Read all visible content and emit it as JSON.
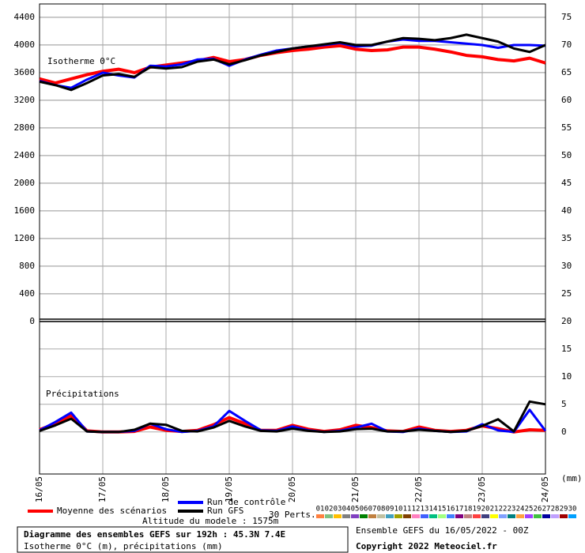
{
  "chart_data": {
    "type": "line",
    "title": "Diagramme des ensembles GEFS sur 192h : 45.3N 7.4E",
    "subtitle": "Isotherme 0°C (m), précipitations (mm)",
    "run_info": "Ensemble GEFS du 16/05/2022 - 00Z",
    "copyright": "Copyright 2022 Meteociel.fr",
    "annotations": {
      "isotherm": "Isotherme 0°C",
      "precip": "Précipitations",
      "unit": "(mm)",
      "altitude": "Altitude du modele : 1575m",
      "perts": "30 Perts."
    },
    "x": [
      0,
      6,
      12,
      18,
      24,
      30,
      36,
      42,
      48,
      54,
      60,
      66,
      72,
      78,
      84,
      90,
      96,
      102,
      108,
      114,
      120,
      126,
      132,
      138,
      144,
      150,
      156,
      162,
      168,
      174,
      180,
      186,
      192
    ],
    "xlim": [
      0,
      192
    ],
    "xticks": [
      {
        "value": 0,
        "label": "16/05"
      },
      {
        "value": 24,
        "label": "17/05"
      },
      {
        "value": 48,
        "label": "18/05"
      },
      {
        "value": 72,
        "label": "19/05"
      },
      {
        "value": 96,
        "label": "20/05"
      },
      {
        "value": 120,
        "label": "21/05"
      },
      {
        "value": 144,
        "label": "22/05"
      },
      {
        "value": 168,
        "label": "23/05"
      },
      {
        "value": 192,
        "label": "24/05"
      }
    ],
    "ylim": [
      0,
      4594
    ],
    "yticks": [
      0,
      400,
      800,
      1200,
      1600,
      2000,
      2400,
      2800,
      3200,
      3600,
      4000,
      4400
    ],
    "y2lim": [
      -7.6,
      77.4
    ],
    "y2ticks": [
      0,
      5,
      10,
      15,
      20,
      25,
      30,
      35,
      40,
      45,
      50,
      55,
      60,
      65,
      70,
      75
    ],
    "grid": true,
    "series": [
      {
        "name": "Moyenne des scénarios",
        "color": "#ff0000",
        "width": 4,
        "values": [
          3510,
          3450,
          3510,
          3570,
          3620,
          3650,
          3600,
          3680,
          3710,
          3740,
          3770,
          3820,
          3760,
          3790,
          3850,
          3890,
          3920,
          3940,
          3970,
          3990,
          3940,
          3920,
          3930,
          3970,
          3970,
          3940,
          3900,
          3850,
          3830,
          3790,
          3770,
          3810,
          3740
        ],
        "precipitation": [
          0.4,
          1.5,
          3.0,
          0.2,
          0,
          0,
          0.1,
          0.9,
          0.3,
          0.1,
          0.3,
          1.3,
          2.6,
          1.5,
          0.3,
          0.3,
          1.2,
          0.5,
          0.1,
          0.4,
          1.2,
          0.8,
          0.2,
          0.1,
          0.9,
          0.3,
          0.1,
          0.3,
          1.1,
          0.6,
          0,
          0.4,
          0.3
        ]
      },
      {
        "name": "Run de contrôle",
        "color": "#0000ff",
        "width": 3,
        "values": [
          3480,
          3420,
          3380,
          3500,
          3600,
          3560,
          3530,
          3700,
          3690,
          3720,
          3790,
          3800,
          3700,
          3790,
          3860,
          3920,
          3950,
          3980,
          4000,
          4030,
          3980,
          3990,
          4050,
          4080,
          4060,
          4060,
          4040,
          4020,
          4000,
          3960,
          4000,
          4000,
          3990
        ],
        "precipitation": [
          0.3,
          1.8,
          3.5,
          0.1,
          0,
          0,
          0.2,
          1.5,
          0.5,
          0,
          0.2,
          1.0,
          3.8,
          2.0,
          0.3,
          0.2,
          1.0,
          0.3,
          0,
          0.2,
          0.8,
          1.5,
          0.1,
          0,
          0.6,
          0.2,
          0,
          0.1,
          1.4,
          0.3,
          0,
          4.0,
          0.2
        ]
      },
      {
        "name": "Run GFS",
        "color": "#000000",
        "width": 3,
        "values": [
          3470,
          3420,
          3350,
          3450,
          3560,
          3580,
          3540,
          3680,
          3660,
          3680,
          3760,
          3790,
          3720,
          3780,
          3850,
          3900,
          3950,
          3980,
          4010,
          4040,
          4000,
          4000,
          4050,
          4100,
          4090,
          4070,
          4100,
          4150,
          4100,
          4050,
          3950,
          3900,
          4000
        ],
        "precipitation": [
          0.2,
          1.2,
          2.4,
          0.1,
          0,
          0,
          0.4,
          1.5,
          1.3,
          0.2,
          0.1,
          0.8,
          2.0,
          1.0,
          0.2,
          0.1,
          0.6,
          0.2,
          0,
          0.1,
          0.5,
          0.6,
          0.1,
          0.1,
          0.4,
          0.2,
          0,
          0.2,
          1.1,
          2.3,
          0.1,
          5.5,
          5.0
        ]
      }
    ],
    "perturbations": [
      {
        "name": "01",
        "color": "#ff8040"
      },
      {
        "name": "02",
        "color": "#80c080"
      },
      {
        "name": "03",
        "color": "#ffc000"
      },
      {
        "name": "04",
        "color": "#808080"
      },
      {
        "name": "05",
        "color": "#8040c0"
      },
      {
        "name": "06",
        "color": "#008000"
      },
      {
        "name": "07",
        "color": "#c08040"
      },
      {
        "name": "08",
        "color": "#c0c0a0"
      },
      {
        "name": "09",
        "color": "#40a0c0"
      },
      {
        "name": "10",
        "color": "#a0a000"
      },
      {
        "name": "11",
        "color": "#804000"
      },
      {
        "name": "12",
        "color": "#ff80c0"
      },
      {
        "name": "13",
        "color": "#4060ff"
      },
      {
        "name": "14",
        "color": "#00c080"
      },
      {
        "name": "15",
        "color": "#a0ff80"
      },
      {
        "name": "16",
        "color": "#4080ff"
      },
      {
        "name": "17",
        "color": "#800080"
      },
      {
        "name": "18",
        "color": "#c08080"
      },
      {
        "name": "19",
        "color": "#ff4040"
      },
      {
        "name": "20",
        "color": "#404080"
      },
      {
        "name": "21",
        "color": "#ffff00"
      },
      {
        "name": "22",
        "color": "#80a0ff"
      },
      {
        "name": "23",
        "color": "#008080"
      },
      {
        "name": "24",
        "color": "#ffa040"
      },
      {
        "name": "25",
        "color": "#a040ff"
      },
      {
        "name": "26",
        "color": "#40c040"
      },
      {
        "name": "27",
        "color": "#0000a0"
      },
      {
        "name": "28",
        "color": "#c0a0ff"
      },
      {
        "name": "29",
        "color": "#a00000"
      },
      {
        "name": "30",
        "color": "#00a0ff"
      }
    ]
  }
}
